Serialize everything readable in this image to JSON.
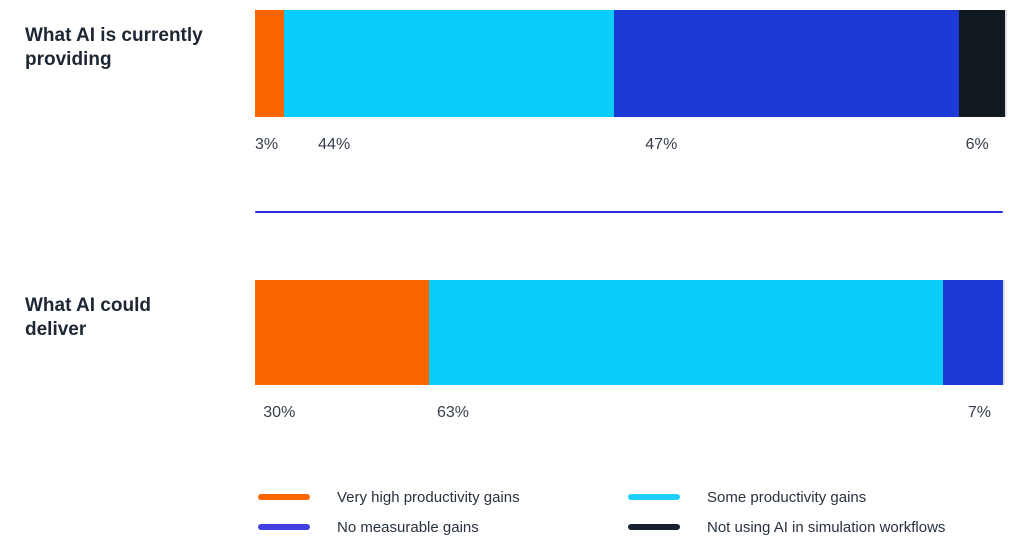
{
  "chart_data": {
    "type": "bar",
    "subtype": "horizontal-stacked",
    "unit": "%",
    "grid": false,
    "legend_position": "bottom",
    "divider_color": "#2b2bdd",
    "rows": [
      {
        "label": "What AI is currently\nproviding",
        "segments": [
          {
            "series": "Very high productivity gains",
            "value": 3,
            "label": "3%",
            "color": "#fc6500",
            "display_width_pct": 3.9,
            "label_x_pct": 0
          },
          {
            "series": "Some productivity gains",
            "value": 44,
            "label": "44%",
            "color": "#0bcdfc",
            "display_width_pct": 44.0,
            "label_x_pct": 8.4
          },
          {
            "series": "No measurable gains",
            "value": 47,
            "label": "47%",
            "color": "#1b3ad6",
            "display_width_pct": 46.0,
            "label_x_pct": 51.9
          },
          {
            "series": "Not using AI in simulation workflows",
            "value": 6,
            "label": "6%",
            "color": "#101820",
            "display_width_pct": 6.1,
            "label_x_pct": 94.5
          }
        ]
      },
      {
        "label": "What AI could\ndeliver",
        "segments": [
          {
            "series": "Very high productivity gains",
            "value": 30,
            "label": "30%",
            "color": "#fc6500",
            "display_width_pct": 23.1,
            "label_x_pct": 1.1
          },
          {
            "series": "Some productivity gains",
            "value": 63,
            "label": "63%",
            "color": "#0bcdfc",
            "display_width_pct": 68.4,
            "label_x_pct": 24.2
          },
          {
            "series": "No measurable gains",
            "value": 7,
            "label": "7%",
            "color": "#1b3ad6",
            "display_width_pct": 8.0,
            "label_x_pct": 94.8
          }
        ]
      }
    ],
    "legend": {
      "items": [
        {
          "label": "Very high productivity gains",
          "color": "#fc6500",
          "col": 0,
          "row": 0
        },
        {
          "label": "No measurable gains",
          "color": "#4140e0",
          "col": 0,
          "row": 1
        },
        {
          "label": "Some productivity gains",
          "color": "#1ed0fb",
          "col": 1,
          "row": 0
        },
        {
          "label": "Not using AI in simulation workflows",
          "color": "#16202e",
          "col": 1,
          "row": 1
        }
      ]
    }
  }
}
